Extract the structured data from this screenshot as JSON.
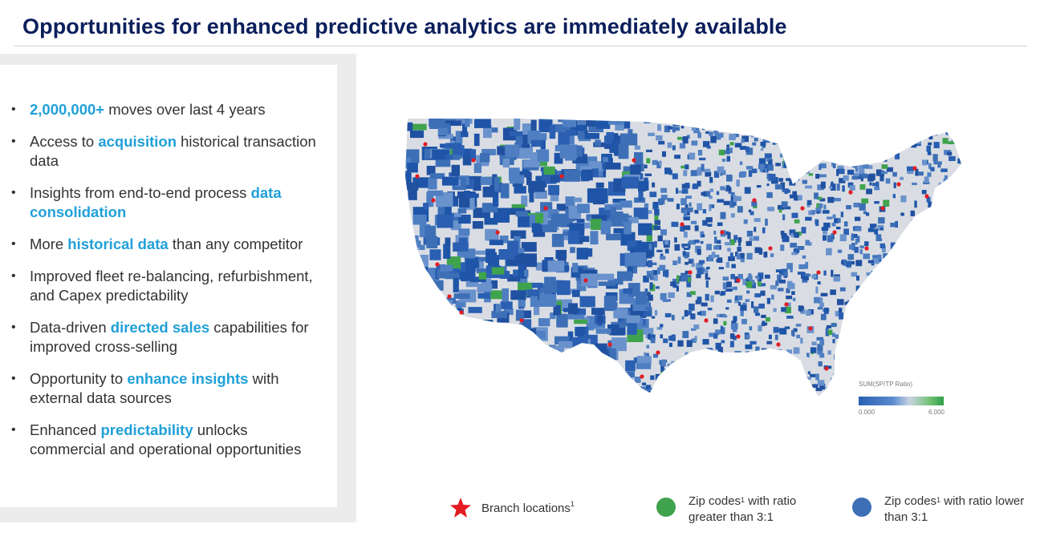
{
  "title": "Opportunities for enhanced predictive analytics are immediately available",
  "bullets": [
    {
      "parts": [
        {
          "text": "2,000,000+",
          "hl": true
        },
        {
          "text": " moves over last 4 years",
          "hl": false
        }
      ]
    },
    {
      "parts": [
        {
          "text": "Access to ",
          "hl": false
        },
        {
          "text": "acquisition",
          "hl": true
        },
        {
          "text": " historical transaction data",
          "hl": false
        }
      ]
    },
    {
      "parts": [
        {
          "text": "Insights from end-to-end process ",
          "hl": false
        },
        {
          "text": "data consolidation",
          "hl": true
        }
      ]
    },
    {
      "parts": [
        {
          "text": "More ",
          "hl": false
        },
        {
          "text": "historical data",
          "hl": true
        },
        {
          "text": " than any competitor",
          "hl": false
        }
      ]
    },
    {
      "parts": [
        {
          "text": "Improved fleet re-balancing, refurbishment, and Capex predictability",
          "hl": false
        }
      ]
    },
    {
      "parts": [
        {
          "text": "Data-driven ",
          "hl": false
        },
        {
          "text": "directed sales",
          "hl": true
        },
        {
          "text": " capabilities for improved cross-selling",
          "hl": false
        }
      ]
    },
    {
      "parts": [
        {
          "text": "Opportunity to ",
          "hl": false
        },
        {
          "text": "enhance insights",
          "hl": true
        },
        {
          "text": " with external data sources",
          "hl": false
        }
      ]
    },
    {
      "parts": [
        {
          "text": "Enhanced ",
          "hl": false
        },
        {
          "text": "predictability",
          "hl": true
        },
        {
          "text": " unlocks commercial and operational opportunities",
          "hl": false
        }
      ]
    }
  ],
  "map": {
    "colorbar": {
      "title": "SUM(SP/TP Ratio)",
      "min": "0.000",
      "max": "6.000"
    }
  },
  "legend": {
    "branch": {
      "label": "Branch locations",
      "sup": "1"
    },
    "green": {
      "label_a": "Zip codes",
      "sup": "1",
      "label_b": " with ratio greater than 3:1"
    },
    "blue": {
      "label_a": "Zip codes",
      "sup": "1",
      "label_b": " with ratio lower than 3:1"
    }
  },
  "colors": {
    "title": "#0b1f5c",
    "highlight": "#20a0d8",
    "blue_zip": "#2a5fb2",
    "green_zip": "#3fa34d",
    "branch_star": "#e31b23",
    "map_base": "#d9dde3"
  }
}
